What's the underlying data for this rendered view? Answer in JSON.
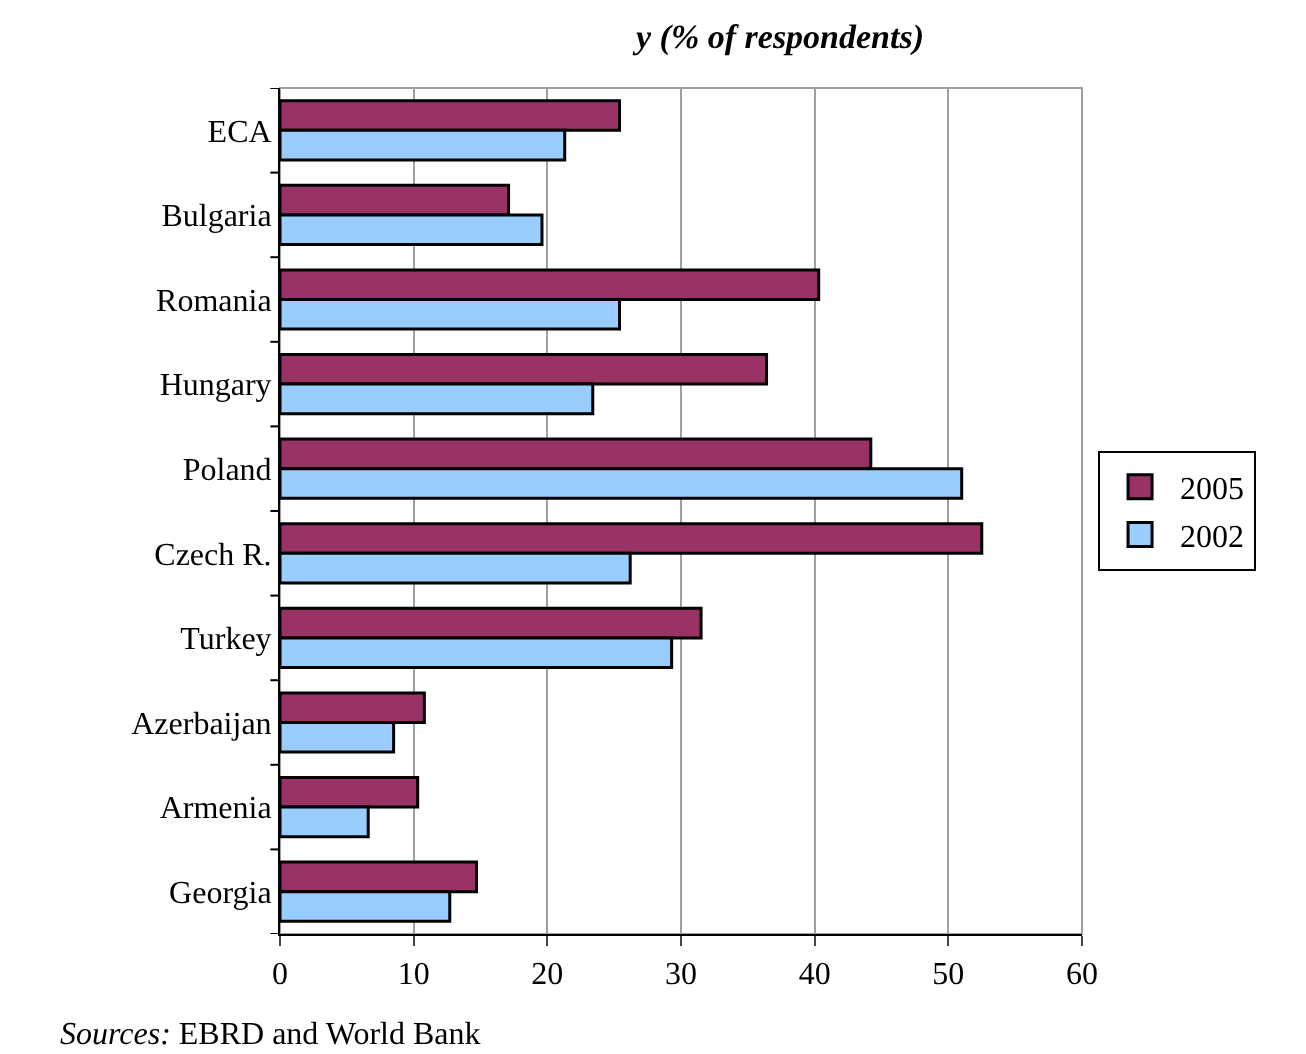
{
  "chart_data": {
    "type": "bar",
    "orientation": "horizontal",
    "title": "y (% of respondents)",
    "categories": [
      "ECA",
      "Bulgaria",
      "Romania",
      "Hungary",
      "Poland",
      "Czech R.",
      "Turkey",
      "Azerbaijan",
      "Armenia",
      "Georgia"
    ],
    "series": [
      {
        "name": "2005",
        "color": "#993366",
        "values": [
          25.4,
          17.1,
          40.3,
          36.4,
          44.2,
          52.5,
          31.5,
          10.8,
          10.3,
          14.7
        ]
      },
      {
        "name": "2002",
        "color": "#99ccff",
        "values": [
          21.3,
          19.6,
          25.4,
          23.4,
          51.0,
          26.2,
          29.3,
          8.5,
          6.6,
          12.7
        ]
      }
    ],
    "xlim": [
      0,
      60
    ],
    "xticks": [
      0,
      10,
      20,
      30,
      40,
      50,
      60
    ],
    "grid": "x",
    "legend": "right",
    "annotations": [
      "Sources: EBRD and World Bank"
    ]
  }
}
